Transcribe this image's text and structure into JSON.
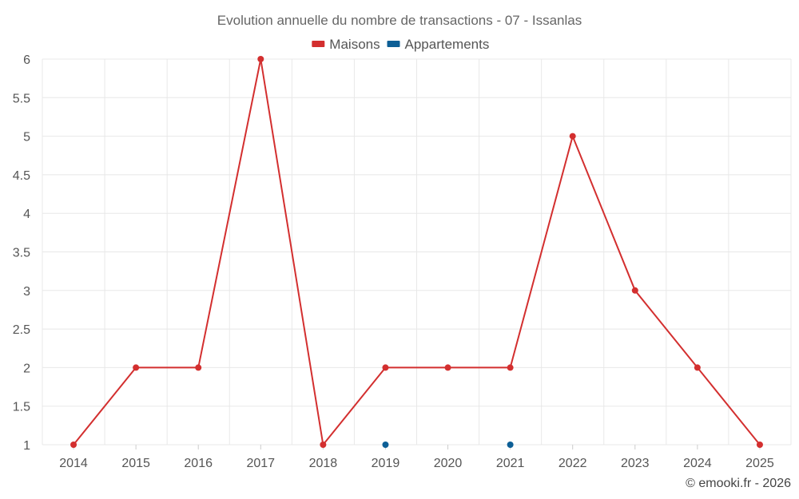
{
  "chart_data": {
    "type": "line",
    "title": "Evolution annuelle du nombre de transactions - 07 - Issanlas",
    "categories": [
      "2014",
      "2015",
      "2016",
      "2017",
      "2018",
      "2019",
      "2020",
      "2021",
      "2022",
      "2023",
      "2024",
      "2025"
    ],
    "series": [
      {
        "name": "Maisons",
        "color": "#d32f2f",
        "values": [
          1,
          2,
          2,
          6,
          1,
          2,
          2,
          2,
          5,
          3,
          2,
          1
        ]
      },
      {
        "name": "Appartements",
        "color": "#0d5f96",
        "values": [
          null,
          null,
          null,
          null,
          null,
          1,
          null,
          1,
          null,
          null,
          null,
          null
        ]
      }
    ],
    "ylim": [
      1,
      6
    ],
    "yticks": [
      "1",
      "1.5",
      "2",
      "2.5",
      "3",
      "3.5",
      "4",
      "4.5",
      "5",
      "5.5",
      "6"
    ],
    "xlabel": "",
    "ylabel": "",
    "legend_position": "top-center",
    "grid": true
  },
  "credit": "© emooki.fr - 2026"
}
